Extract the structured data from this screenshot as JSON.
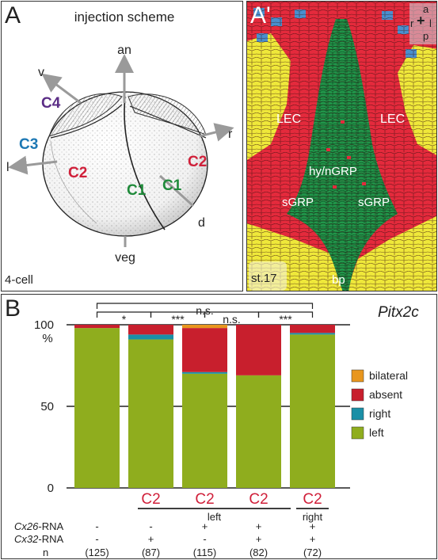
{
  "panel_a": {
    "letter": "A",
    "title": "injection scheme",
    "stage": "4-cell",
    "axes": {
      "an": "an",
      "veg": "veg",
      "v": "v",
      "d": "d",
      "l": "l",
      "r": "r"
    },
    "cells": {
      "c4": "C4",
      "c3": "C3",
      "c2_left": "C2",
      "c2_right": "C2",
      "c1_left": "C1",
      "c1_right": "C1"
    },
    "colors": {
      "c4": "#5b2d86",
      "c3": "#1d78b4",
      "c2": "#d0203a",
      "c1": "#1f8a3a",
      "arrow": "#9a9a9a"
    }
  },
  "panel_a2": {
    "letter": "A'",
    "labels": {
      "lec_left": "LEC",
      "lec_right": "LEC",
      "hy": "hy/nGRP",
      "sgrp_left": "sGRP",
      "sgrp_right": "sGRP",
      "bp": "bp",
      "stage": "st.17"
    },
    "orientation": {
      "a": "a",
      "r": "r",
      "l": "l",
      "p": "p"
    },
    "colors": {
      "red": "#e42a3c",
      "green": "#21964a",
      "yellow": "#efe83a",
      "blue": "#4a8fce"
    }
  },
  "panel_b": {
    "letter": "B",
    "gene": "Pitx2c",
    "y_unit": "%",
    "significance": [
      "*",
      "***",
      "n.s.",
      "***"
    ],
    "overall": "n.s.",
    "injection_label": "C2",
    "group_left": "left",
    "group_right": "right",
    "row_labels": {
      "cx26": "Cx26-RNA",
      "cx26_ital": "Cx26",
      "cx26_rest": "-RNA",
      "cx32": "Cx32-RNA",
      "cx32_ital": "Cx32",
      "cx32_rest": "-RNA",
      "n": "n"
    },
    "cx26": [
      "-",
      "-",
      "+",
      "+",
      "+"
    ],
    "cx32": [
      "-",
      "+",
      "-",
      "+",
      "+"
    ],
    "n_values": [
      "(125)",
      "(87)",
      "(115)",
      "(82)",
      "(72)"
    ],
    "show_c2": [
      false,
      true,
      true,
      true,
      true
    ]
  },
  "chart_data": {
    "type": "bar",
    "stacked": true,
    "ylabel": "%",
    "ylim": [
      0,
      100
    ],
    "yticks": [
      "0",
      "50",
      "100"
    ],
    "categories": [
      "1",
      "2",
      "3",
      "4",
      "5"
    ],
    "series": [
      {
        "name": "left",
        "color": "#8fad1e",
        "values": [
          98,
          91,
          70,
          69,
          94
        ]
      },
      {
        "name": "right",
        "color": "#1a8fa6",
        "values": [
          0,
          3,
          1,
          0,
          1
        ]
      },
      {
        "name": "absent",
        "color": "#c81f2d",
        "values": [
          2,
          6,
          27,
          31,
          5
        ]
      },
      {
        "name": "bilateral",
        "color": "#e8961e",
        "values": [
          0,
          0,
          2,
          0,
          0
        ]
      }
    ],
    "legend": [
      "bilateral",
      "absent",
      "right",
      "left"
    ],
    "legend_position": "right"
  }
}
